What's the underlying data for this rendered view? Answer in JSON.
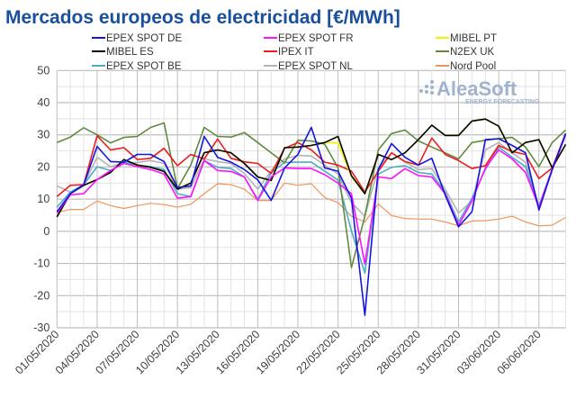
{
  "chart_data": {
    "type": "line",
    "title": "Mercados europeos de electricidad [€/MWh]",
    "xlabel": "",
    "ylabel": "",
    "ylim": [
      -30,
      50
    ],
    "yticks": [
      50,
      40,
      30,
      20,
      10,
      0,
      -10,
      -20,
      -30
    ],
    "grid": true,
    "legend_position": "top",
    "watermark": {
      "brand": "AleaSoft",
      "tagline": "ENERGY FORECASTING"
    },
    "x": [
      "01/05/2020",
      "02/05/2020",
      "03/05/2020",
      "04/05/2020",
      "05/05/2020",
      "06/05/2020",
      "07/05/2020",
      "08/05/2020",
      "09/05/2020",
      "10/05/2020",
      "11/05/2020",
      "12/05/2020",
      "13/05/2020",
      "14/05/2020",
      "15/05/2020",
      "16/05/2020",
      "17/05/2020",
      "18/05/2020",
      "19/05/2020",
      "20/05/2020",
      "21/05/2020",
      "22/05/2020",
      "23/05/2020",
      "24/05/2020",
      "25/05/2020",
      "26/05/2020",
      "27/05/2020",
      "28/05/2020",
      "29/05/2020",
      "30/05/2020",
      "31/05/2020",
      "01/06/2020",
      "02/06/2020",
      "03/06/2020",
      "04/06/2020",
      "05/06/2020",
      "06/06/2020",
      "07/06/2020",
      "08/06/2020"
    ],
    "x_tick_labels": [
      "01/05/2020",
      "04/05/2020",
      "07/05/2020",
      "10/05/2020",
      "13/05/2020",
      "16/05/2020",
      "19/05/2020",
      "22/05/2020",
      "25/05/2020",
      "28/05/2020",
      "31/05/2020",
      "03/06/2020",
      "06/06/2020"
    ],
    "series": [
      {
        "name": "EPEX SPOT DE",
        "color": "#1414e0",
        "values": [
          6.1,
          11.7,
          14.5,
          26.4,
          21.7,
          21.5,
          23.9,
          23.9,
          21.7,
          13.6,
          14.1,
          29.5,
          23,
          21.5,
          19.2,
          16,
          9.6,
          19.7,
          23.9,
          32.3,
          19.7,
          18.7,
          10.3,
          -26.1,
          19.2,
          27.3,
          23,
          20.6,
          22.7,
          11.3,
          1.4,
          6.1,
          28.5,
          28.8,
          26.7,
          24.4,
          6.6,
          19.2,
          30.4
        ]
      },
      {
        "name": "EPEX SPOT FR",
        "color": "#ff10ff",
        "values": [
          5.7,
          11.3,
          11.7,
          16.1,
          18.9,
          21.1,
          20.1,
          19.2,
          17.8,
          10.3,
          10.8,
          22,
          18.9,
          18.6,
          16.9,
          9.6,
          16.9,
          19.7,
          19.5,
          19.5,
          17.6,
          15,
          11.7,
          -10.2,
          16.9,
          16.4,
          19.5,
          17.3,
          16.9,
          11.7,
          1.9,
          9.4,
          19.7,
          25.3,
          22.5,
          18.3,
          7.5,
          19.2,
          30
        ]
      },
      {
        "name": "MIBEL PT",
        "color": "#f2f200",
        "values": [
          4.5,
          11.7,
          14.3,
          16.1,
          18.3,
          22.3,
          20.6,
          19.9,
          18.6,
          13.5,
          15,
          24.4,
          25.3,
          24.4,
          21.1,
          16.9,
          15.8,
          26,
          26.2,
          26.7,
          27.6,
          27.5,
          17,
          11.7,
          23.9,
          22.3,
          24.4,
          28.5,
          33,
          29.8,
          29.8,
          34.3,
          34.9,
          32.7,
          24.4,
          27.6,
          28.5,
          19.7,
          27
        ]
      },
      {
        "name": "MIBEL ES",
        "color": "#000000",
        "values": [
          4.5,
          11.7,
          14.3,
          16.1,
          18.3,
          22.3,
          20.6,
          19.9,
          18.6,
          13.1,
          15,
          24.4,
          25.3,
          24.4,
          21.1,
          16.9,
          15.8,
          26,
          26.2,
          26.7,
          27.6,
          29.5,
          17.3,
          11.7,
          23.9,
          22.3,
          24.4,
          28.5,
          33,
          29.8,
          29.8,
          34.3,
          34.9,
          32.7,
          24.4,
          27.6,
          28.5,
          19.7,
          27
        ]
      },
      {
        "name": "IPEX IT",
        "color": "#ee1c1c",
        "values": [
          10.8,
          14.3,
          14.5,
          29.7,
          25.3,
          26,
          22.3,
          22.7,
          25.8,
          20.4,
          23.9,
          22.5,
          28.7,
          22.7,
          21.6,
          21.1,
          18,
          25.8,
          27.6,
          25.3,
          21.5,
          20.6,
          18.7,
          12.2,
          18.7,
          24.4,
          21.7,
          20.6,
          29,
          23.9,
          22,
          19.5,
          20.4,
          26.7,
          24.8,
          23.9,
          16.4,
          19.7,
          30.4
        ]
      },
      {
        "name": "N2EX UK",
        "color": "#5f8a3f",
        "values": [
          27.6,
          29.3,
          32.2,
          30,
          27.5,
          29.2,
          29.5,
          32.3,
          33.7,
          13.3,
          20.6,
          32.3,
          29.5,
          29.3,
          30.7,
          27.6,
          24.4,
          21.3,
          28.3,
          28.1,
          27.1,
          19.7,
          -11.3,
          4.7,
          25.3,
          30.4,
          31.5,
          28.1,
          26.2,
          24.4,
          22.5,
          27.6,
          28.3,
          28.8,
          29.2,
          26.2,
          20.1,
          27.6,
          31.5
        ]
      },
      {
        "name": "EPEX SPOT BE",
        "color": "#4bacc6",
        "values": [
          7.5,
          12.2,
          14.5,
          20.1,
          18.9,
          21.5,
          20.6,
          20.1,
          19.2,
          11.7,
          10.8,
          22,
          19.9,
          19.5,
          16.9,
          9.9,
          18.3,
          21.4,
          21.5,
          21.5,
          18.7,
          15.9,
          0.1,
          -13,
          17.8,
          19.9,
          20.4,
          18.3,
          17.8,
          12.2,
          2.9,
          10.3,
          19.2,
          26.2,
          23,
          20.1,
          7.5,
          19.2,
          30
        ]
      },
      {
        "name": "EPEX SPOT NL",
        "color": "#b4b4b4",
        "values": [
          14.1,
          12.2,
          14.5,
          23,
          20.1,
          21.3,
          21.4,
          22,
          21.1,
          13.1,
          13.6,
          22.5,
          21.7,
          21.1,
          18,
          13.1,
          18.9,
          22.5,
          23.6,
          23.4,
          20.6,
          17.8,
          8.9,
          4.7,
          19.7,
          24.4,
          21.5,
          19.2,
          19.5,
          13.1,
          5.7,
          9.4,
          25.3,
          27.6,
          24.4,
          21.5,
          8,
          19.7,
          30.4
        ]
      },
      {
        "name": "Nord Pool",
        "color": "#f0955a",
        "values": [
          5.9,
          6.8,
          6.8,
          9.4,
          8,
          7.1,
          8,
          8.7,
          8.3,
          7.5,
          8.4,
          11.7,
          14.8,
          14.5,
          13.1,
          9.6,
          9.6,
          15,
          14.3,
          14.8,
          10.5,
          8.9,
          4.7,
          2.9,
          8.5,
          4.9,
          4,
          3.8,
          3.8,
          2.9,
          1.7,
          3.2,
          3.3,
          3.8,
          4.7,
          2.9,
          1.7,
          1.9,
          4.3
        ]
      }
    ]
  }
}
